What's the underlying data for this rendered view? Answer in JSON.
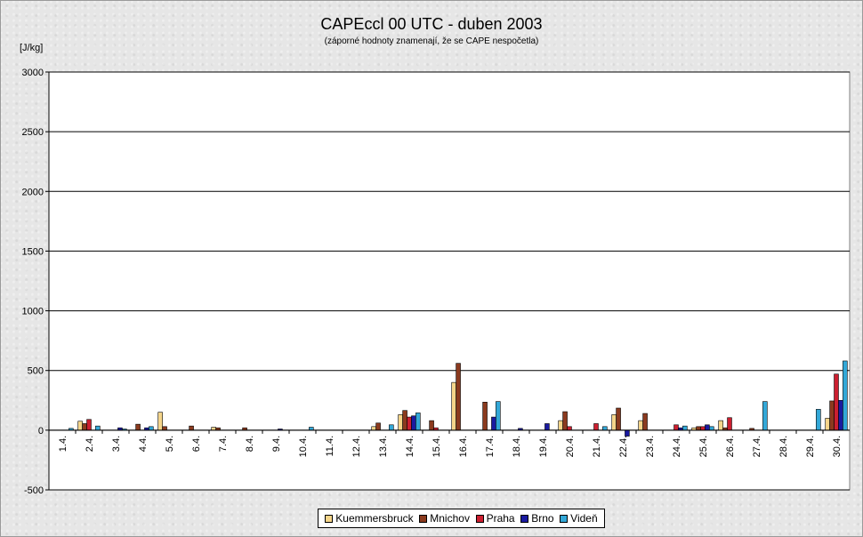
{
  "chart_data": {
    "type": "bar",
    "title": "CAPEccl 00 UTC - duben 2003",
    "subtitle": "(záporné hodnoty znamenají, že se CAPE nespočetla)",
    "ylabel": "[J/kg]",
    "ylim": [
      -500,
      3000
    ],
    "yticks": [
      "-500",
      "0",
      "500",
      "1000",
      "1500",
      "2000",
      "2500",
      "3000"
    ],
    "grid": true,
    "legend_position": "bottom",
    "categories": [
      "1.4.",
      "2.4.",
      "3.4.",
      "4.4.",
      "5.4.",
      "6.4.",
      "7.4.",
      "8.4.",
      "9.4.",
      "10.4.",
      "11.4.",
      "12.4.",
      "13.4.",
      "14.4.",
      "15.4.",
      "16.4.",
      "17.4.",
      "18.4.",
      "19.4.",
      "20.4.",
      "21.4.",
      "22.4.",
      "23.4.",
      "24.4.",
      "25.4.",
      "26.4.",
      "27.4.",
      "28.4.",
      "29.4.",
      "30.4."
    ],
    "series": [
      {
        "name": "Kuemmersbruck",
        "color": "#f5d58a",
        "values": [
          0,
          75,
          0,
          0,
          150,
          0,
          25,
          0,
          0,
          0,
          0,
          0,
          30,
          130,
          0,
          400,
          0,
          0,
          0,
          80,
          0,
          130,
          80,
          0,
          20,
          80,
          0,
          0,
          0,
          100
        ]
      },
      {
        "name": "Mnichov",
        "color": "#8b3a1e",
        "values": [
          0,
          55,
          0,
          50,
          30,
          35,
          20,
          20,
          0,
          0,
          0,
          0,
          60,
          165,
          80,
          560,
          235,
          0,
          0,
          155,
          0,
          185,
          140,
          0,
          30,
          20,
          15,
          0,
          0,
          245
        ]
      },
      {
        "name": "Praha",
        "color": "#cc1f30",
        "values": [
          0,
          90,
          0,
          0,
          0,
          0,
          0,
          0,
          0,
          0,
          0,
          0,
          0,
          110,
          20,
          0,
          0,
          0,
          0,
          30,
          55,
          0,
          0,
          45,
          30,
          105,
          0,
          0,
          0,
          470
        ]
      },
      {
        "name": "Brno",
        "color": "#1a1aa0",
        "values": [
          0,
          0,
          20,
          20,
          0,
          0,
          0,
          0,
          10,
          0,
          0,
          0,
          0,
          120,
          0,
          0,
          110,
          15,
          55,
          0,
          0,
          -50,
          0,
          20,
          45,
          0,
          0,
          0,
          0,
          250
        ]
      },
      {
        "name": "Videň",
        "color": "#33a8d8",
        "values": [
          15,
          35,
          10,
          30,
          0,
          0,
          0,
          0,
          0,
          25,
          0,
          0,
          45,
          145,
          0,
          0,
          240,
          0,
          0,
          0,
          30,
          0,
          0,
          35,
          30,
          0,
          240,
          0,
          175,
          580
        ]
      }
    ]
  }
}
